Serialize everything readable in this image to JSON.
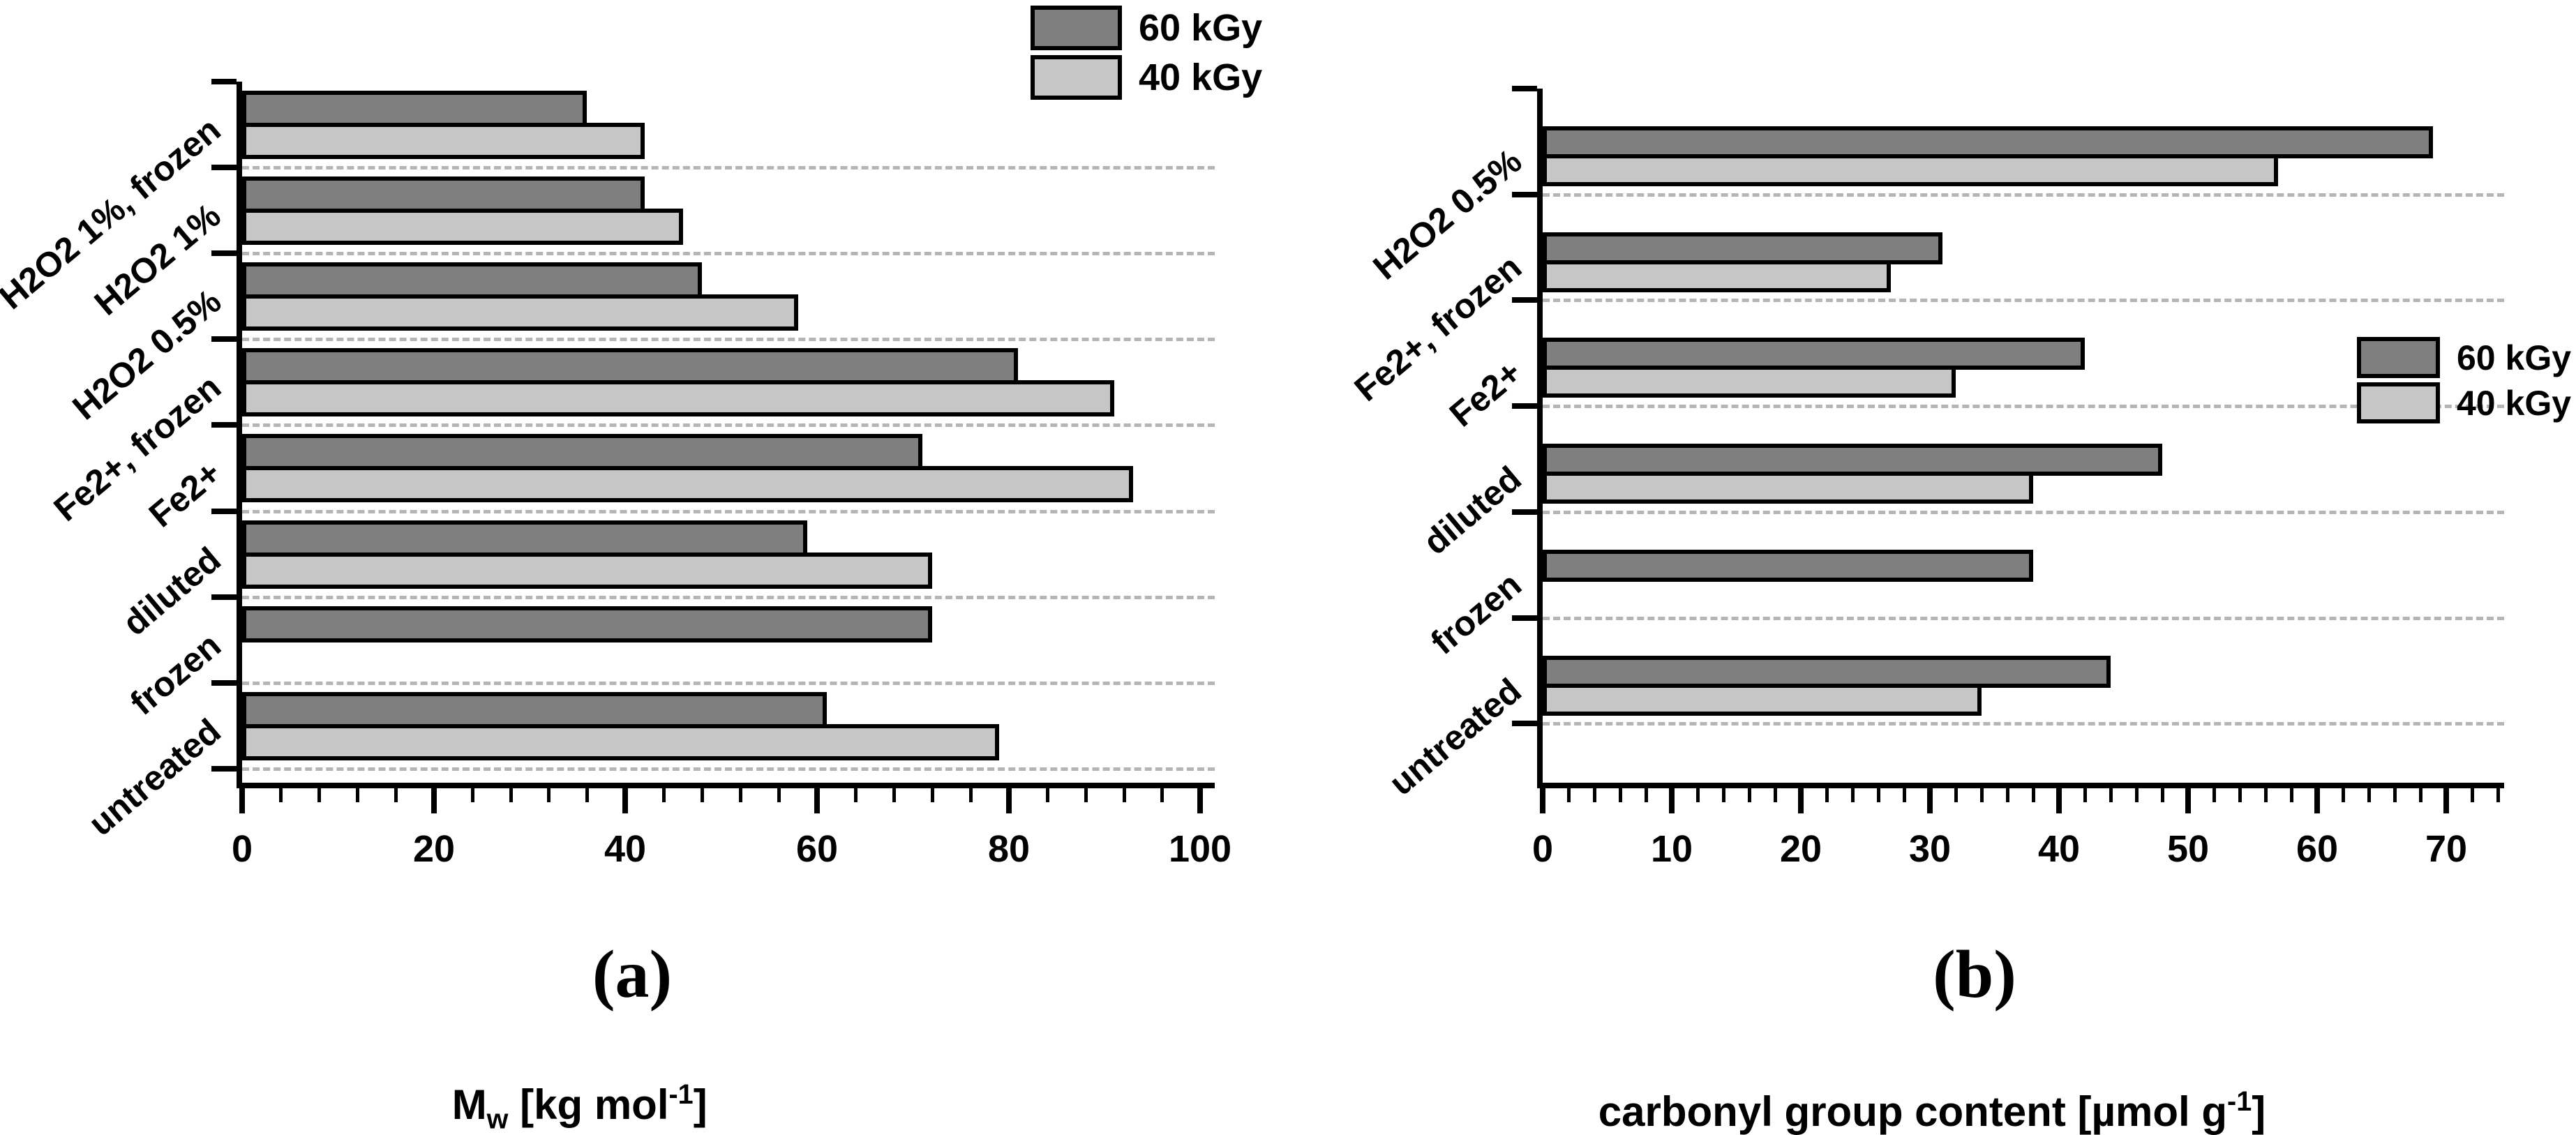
{
  "colors": {
    "bar_dark": "#7f7f7f",
    "bar_light": "#c6c6c6",
    "outline": "#000000",
    "gridline": "#b5b5b5",
    "background": "#ffffff"
  },
  "legend": {
    "items": [
      {
        "label": "60 kGy",
        "color": "#7f7f7f"
      },
      {
        "label": "40 kGy",
        "color": "#c6c6c6"
      }
    ]
  },
  "chart_data": [
    {
      "id": "a",
      "type": "bar",
      "orientation": "horizontal",
      "caption": "(a)",
      "categories": [
        "H2O2 1%, frozen",
        "H2O2 1%",
        "H2O2 0.5%",
        "Fe2+, frozen",
        "Fe2+",
        "diluted",
        "frozen",
        "untreated"
      ],
      "series": [
        {
          "name": "60 kGy",
          "values": [
            36,
            42,
            48,
            81,
            71,
            59,
            72,
            61
          ]
        },
        {
          "name": "40 kGy",
          "values": [
            42,
            46,
            58,
            91,
            93,
            72,
            null,
            79
          ]
        }
      ],
      "xlabel_parts": {
        "main": "M",
        "sub": "w",
        "mid": " [kg mol",
        "sup": "-1",
        "end": "]"
      },
      "xlim": [
        0,
        100
      ],
      "xticks": [
        0,
        20,
        40,
        60,
        80,
        100
      ],
      "minor_step": 4,
      "grid": "dashed-between-groups",
      "legend_position": "top-right-outside"
    },
    {
      "id": "b",
      "type": "bar",
      "orientation": "horizontal",
      "caption": "(b)",
      "categories": [
        "H2O2 0.5%",
        "Fe2+, frozen",
        "Fe2+",
        "diluted",
        "frozen",
        "untreated"
      ],
      "series": [
        {
          "name": "60 kGy",
          "values": [
            69,
            31,
            42,
            48,
            38,
            44
          ]
        },
        {
          "name": "40 kGy",
          "values": [
            57,
            27,
            32,
            38,
            null,
            34
          ]
        }
      ],
      "xlabel_parts": {
        "main": "carbonyl group content [µmol g",
        "sup": "-1",
        "end": "]"
      },
      "xlim": [
        0,
        70
      ],
      "xticks": [
        0,
        10,
        20,
        30,
        40,
        50,
        60,
        70
      ],
      "minor_step": 2,
      "grid": "dashed-between-groups",
      "legend_position": "right-inside"
    }
  ]
}
